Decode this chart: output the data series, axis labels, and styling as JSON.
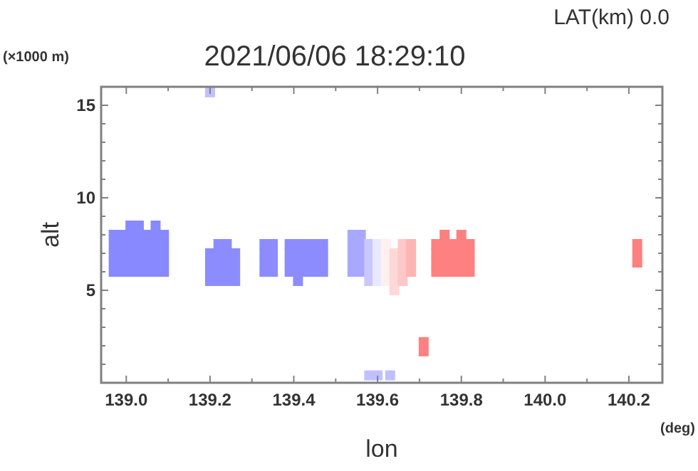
{
  "chart_data": {
    "type": "scatter",
    "title": "2021/06/06 18:29:10",
    "subtitle": "LAT(km) 0.0",
    "xlabel": "lon",
    "ylabel": "alt",
    "annotations": [
      "(×1000 m)",
      "(deg)"
    ],
    "marker": "square",
    "grid": false,
    "xlim": [
      138.94,
      140.28
    ],
    "ylim": [
      0,
      16
    ],
    "xticks": [
      {
        "value": 139.0,
        "label": "139.0"
      },
      {
        "value": 139.1,
        "label": null
      },
      {
        "value": 139.2,
        "label": "139.2"
      },
      {
        "value": 139.3,
        "label": null
      },
      {
        "value": 139.4,
        "label": "139.4"
      },
      {
        "value": 139.5,
        "label": null
      },
      {
        "value": 139.6,
        "label": "139.6"
      },
      {
        "value": 139.7,
        "label": null
      },
      {
        "value": 139.8,
        "label": "139.8"
      },
      {
        "value": 139.9,
        "label": null
      },
      {
        "value": 140.0,
        "label": "140.0"
      },
      {
        "value": 140.1,
        "label": null
      },
      {
        "value": 140.2,
        "label": "140.2"
      }
    ],
    "yticks": [
      {
        "value": 1,
        "label": null
      },
      {
        "value": 2,
        "label": null
      },
      {
        "value": 3,
        "label": null
      },
      {
        "value": 4,
        "label": null
      },
      5,
      {
        "value": 6,
        "label": null
      },
      {
        "value": 7,
        "label": null
      },
      {
        "value": 8,
        "label": null
      },
      {
        "value": 9,
        "label": null
      },
      10,
      {
        "value": 11,
        "label": null
      },
      {
        "value": 12,
        "label": null
      },
      {
        "value": 13,
        "label": null
      },
      {
        "value": 14,
        "label": null
      },
      15
    ],
    "series": [
      {
        "color": "#8888ff",
        "x": [
          138.97,
          138.97,
          138.97,
          138.97,
          138.97,
          138.99,
          138.99,
          138.99,
          138.99,
          138.99,
          139.01,
          139.01,
          139.01,
          139.01,
          139.01,
          139.01,
          139.03,
          139.03,
          139.03,
          139.03,
          139.03,
          139.03,
          139.05,
          139.05,
          139.05,
          139.05,
          139.05,
          139.07,
          139.07,
          139.07,
          139.07,
          139.07,
          139.07,
          139.09,
          139.09,
          139.09,
          139.09,
          139.09
        ],
        "values": [
          6.0,
          6.5,
          7.0,
          7.5,
          8.0,
          6.0,
          6.5,
          7.0,
          7.5,
          8.0,
          6.0,
          6.5,
          7.0,
          7.5,
          8.0,
          8.5,
          6.0,
          6.5,
          7.0,
          7.5,
          8.0,
          8.5,
          6.0,
          6.5,
          7.0,
          7.5,
          8.0,
          6.0,
          6.5,
          7.0,
          7.5,
          8.0,
          8.5,
          6.0,
          6.5,
          7.0,
          7.5,
          8.0
        ]
      },
      {
        "color": "#8c8cff",
        "x": [
          139.2,
          139.2,
          139.2,
          139.2,
          139.22,
          139.22,
          139.22,
          139.22,
          139.22,
          139.24,
          139.24,
          139.24,
          139.24,
          139.24,
          139.26,
          139.26,
          139.26,
          139.26
        ],
        "values": [
          5.5,
          6.0,
          6.5,
          7.0,
          5.5,
          6.0,
          6.5,
          7.0,
          7.5,
          5.5,
          6.0,
          6.5,
          7.0,
          7.5,
          5.5,
          6.0,
          6.5,
          7.0
        ]
      },
      {
        "color": "#8c8cff",
        "x": [
          139.33,
          139.33,
          139.33,
          139.33,
          139.35,
          139.35,
          139.35,
          139.35
        ],
        "values": [
          6.0,
          6.5,
          7.0,
          7.5,
          6.0,
          6.5,
          7.0,
          7.5
        ]
      },
      {
        "color": "#8c8cff",
        "x": [
          139.39,
          139.39,
          139.39,
          139.39,
          139.41,
          139.41,
          139.41,
          139.41,
          139.41,
          139.43,
          139.43,
          139.43,
          139.43,
          139.45,
          139.45,
          139.45,
          139.45,
          139.47,
          139.47,
          139.47,
          139.47
        ],
        "values": [
          6.0,
          6.5,
          7.0,
          7.5,
          5.5,
          6.0,
          6.5,
          7.0,
          7.5,
          6.0,
          6.5,
          7.0,
          7.5,
          6.0,
          6.5,
          7.0,
          7.5,
          6.0,
          6.5,
          7.0,
          7.5
        ]
      },
      {
        "color": "#a8a8ff",
        "x": [
          139.54,
          139.54,
          139.54,
          139.54,
          139.54,
          139.56,
          139.56,
          139.56,
          139.56,
          139.56
        ],
        "values": [
          6.0,
          6.5,
          7.0,
          7.5,
          8.0,
          6.0,
          6.5,
          7.0,
          7.5,
          8.0
        ]
      },
      {
        "color": "#c8c8ff",
        "x": [
          139.58,
          139.58,
          139.58,
          139.58,
          139.58
        ],
        "values": [
          5.5,
          6.0,
          6.5,
          7.0,
          7.5
        ]
      },
      {
        "color": "#e8e8ff",
        "x": [
          139.6,
          139.6,
          139.6,
          139.6,
          139.6
        ],
        "values": [
          5.5,
          6.0,
          6.5,
          7.0,
          7.5
        ]
      },
      {
        "color": "#fff0f0",
        "x": [
          139.62,
          139.62,
          139.62,
          139.62,
          139.62
        ],
        "values": [
          5.5,
          6.0,
          6.5,
          7.0,
          7.5
        ]
      },
      {
        "color": "#ffd8d8",
        "x": [
          139.64,
          139.64,
          139.64,
          139.64,
          139.64
        ],
        "values": [
          5.0,
          5.5,
          6.0,
          6.5,
          7.0
        ]
      },
      {
        "color": "#ffc8c8",
        "x": [
          139.66,
          139.66,
          139.66,
          139.66,
          139.66
        ],
        "values": [
          5.5,
          6.0,
          6.5,
          7.0,
          7.5
        ]
      },
      {
        "color": "#ffb4b4",
        "x": [
          139.68,
          139.68,
          139.68,
          139.68
        ],
        "values": [
          6.0,
          6.5,
          7.0,
          7.5
        ]
      },
      {
        "color": "#ff8080",
        "x": [
          139.74,
          139.74,
          139.74,
          139.74,
          139.76,
          139.76,
          139.76,
          139.76,
          139.76,
          139.78,
          139.78,
          139.78,
          139.78,
          139.8,
          139.8,
          139.8,
          139.8,
          139.8,
          139.82,
          139.82,
          139.82,
          139.82
        ],
        "values": [
          6.0,
          6.5,
          7.0,
          7.5,
          6.0,
          6.5,
          7.0,
          7.5,
          8.0,
          6.0,
          6.5,
          7.0,
          7.5,
          6.0,
          6.5,
          7.0,
          7.5,
          8.0,
          6.0,
          6.5,
          7.0,
          7.5
        ]
      },
      {
        "color": "#ff8080",
        "x": [
          140.22,
          140.22,
          140.22
        ],
        "values": [
          6.5,
          7.0,
          7.5
        ]
      },
      {
        "color": "#ff8080",
        "x": [
          139.71,
          139.71
        ],
        "values": [
          1.7,
          2.2
        ]
      },
      {
        "color": "#c0c0ff",
        "x": [
          139.2,
          139.58,
          139.6,
          139.63
        ],
        "values": [
          15.7,
          0.4,
          0.4,
          0.4
        ]
      }
    ]
  }
}
